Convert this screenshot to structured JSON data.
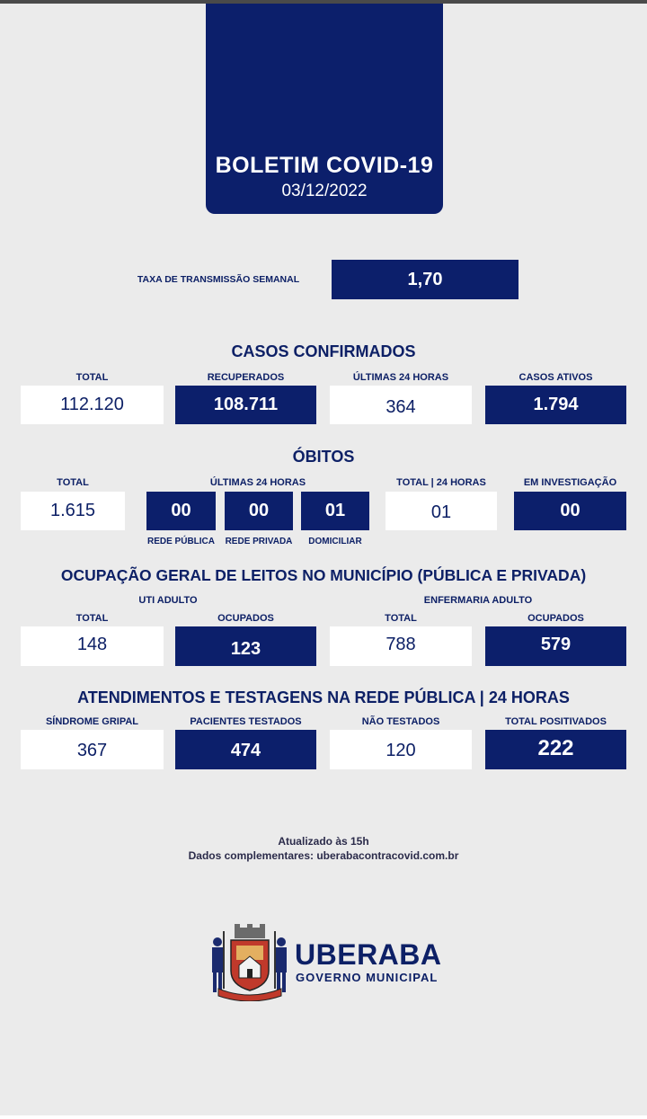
{
  "header": {
    "title": "BOLETIM COVID-19",
    "date": "03/12/2022"
  },
  "transmission": {
    "label": "TAXA DE TRANSMISSÃO SEMANAL",
    "value": "1,70"
  },
  "casos": {
    "title": "CASOS CONFIRMADOS",
    "items": [
      {
        "label": "TOTAL",
        "value": "112.120"
      },
      {
        "label": "RECUPERADOS",
        "value": "108.711"
      },
      {
        "label": "ÚLTIMAS 24 HORAS",
        "value": "364"
      },
      {
        "label": "CASOS ATIVOS",
        "value": "1.794"
      }
    ]
  },
  "obitos": {
    "title": "ÓBITOS",
    "total_label": "TOTAL",
    "total_value": "1.615",
    "last24_label": "ÚLTIMAS 24 HORAS",
    "last24": [
      {
        "label": "REDE PÚBLICA",
        "value": "00"
      },
      {
        "label": "REDE PRIVADA",
        "value": "00"
      },
      {
        "label": "DOMICILIAR",
        "value": "01"
      }
    ],
    "total24_label": "TOTAL | 24 HORAS",
    "total24_value": "01",
    "investig_label": "EM INVESTIGAÇÃO",
    "investig_value": "00"
  },
  "leitos": {
    "title": "OCUPAÇÃO GERAL DE LEITOS NO MUNICÍPIO (PÚBLICA E PRIVADA)",
    "uti_label": "UTI ADULTO",
    "enf_label": "ENFERMARIA ADULTO",
    "items": [
      {
        "label": "TOTAL",
        "value": "148"
      },
      {
        "label": "OCUPADOS",
        "value": "123"
      },
      {
        "label": "TOTAL",
        "value": "788"
      },
      {
        "label": "OCUPADOS",
        "value": "579"
      }
    ]
  },
  "atend": {
    "title": "ATENDIMENTOS E TESTAGENS NA REDE PÚBLICA | 24 HORAS",
    "items": [
      {
        "label": "SÍNDROME GRIPAL",
        "value": "367"
      },
      {
        "label": "PACIENTES TESTADOS",
        "value": "474"
      },
      {
        "label": "NÃO TESTADOS",
        "value": "120"
      },
      {
        "label": "TOTAL POSITIVADOS",
        "value": "222"
      }
    ]
  },
  "footer": {
    "updated": "Atualizado às 15h",
    "extra": "Dados complementares: uberabacontracovid.com.br"
  },
  "logo": {
    "name": "UBERABA",
    "subtitle": "GOVERNO MUNICIPAL",
    "icon": "city-coat-of-arms-icon"
  },
  "colors": {
    "navy": "#0c1f6b",
    "background": "#ebebeb",
    "white": "#ffffff"
  }
}
